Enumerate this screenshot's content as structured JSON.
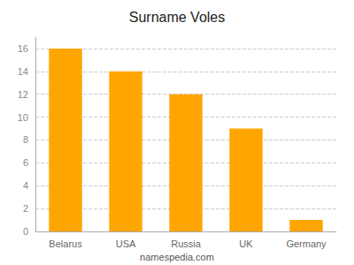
{
  "chart_data": {
    "type": "bar",
    "title": "Surname Voles",
    "categories": [
      "Belarus",
      "USA",
      "Russia",
      "UK",
      "Germany"
    ],
    "values": [
      16,
      14,
      12,
      9,
      1
    ],
    "color": "#FFA500",
    "ylim": [
      0,
      17
    ],
    "yticks": [
      0,
      2,
      4,
      6,
      8,
      10,
      12,
      14,
      16
    ],
    "grid": true,
    "annotations": [
      "namespedia.com"
    ]
  }
}
